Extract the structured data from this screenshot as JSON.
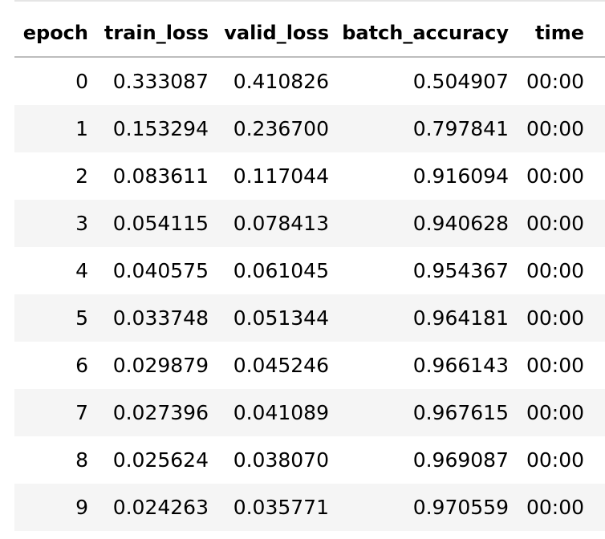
{
  "table": {
    "headers": [
      "epoch",
      "train_loss",
      "valid_loss",
      "batch_accuracy",
      "time"
    ],
    "rows": [
      [
        "0",
        "0.333087",
        "0.410826",
        "0.504907",
        "00:00"
      ],
      [
        "1",
        "0.153294",
        "0.236700",
        "0.797841",
        "00:00"
      ],
      [
        "2",
        "0.083611",
        "0.117044",
        "0.916094",
        "00:00"
      ],
      [
        "3",
        "0.054115",
        "0.078413",
        "0.940628",
        "00:00"
      ],
      [
        "4",
        "0.040575",
        "0.061045",
        "0.954367",
        "00:00"
      ],
      [
        "5",
        "0.033748",
        "0.051344",
        "0.964181",
        "00:00"
      ],
      [
        "6",
        "0.029879",
        "0.045246",
        "0.966143",
        "00:00"
      ],
      [
        "7",
        "0.027396",
        "0.041089",
        "0.967615",
        "00:00"
      ],
      [
        "8",
        "0.025624",
        "0.038070",
        "0.969087",
        "00:00"
      ],
      [
        "9",
        "0.024263",
        "0.035771",
        "0.970559",
        "00:00"
      ]
    ]
  },
  "colors": {
    "row_stripe": "#f5f5f5",
    "header_rule": "#bdbdbd",
    "text": "#000000",
    "background": "#ffffff"
  }
}
